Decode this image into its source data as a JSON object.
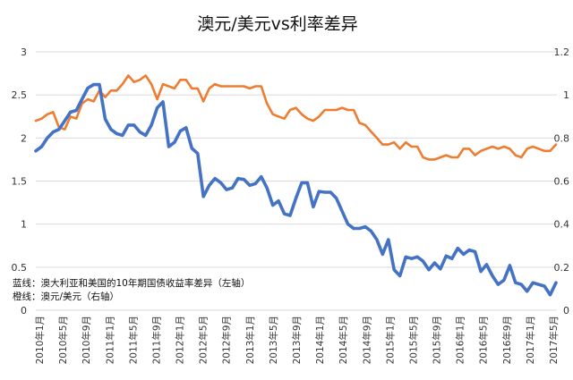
{
  "chart_data": {
    "type": "line",
    "title": "澳元/美元vs利率差异",
    "xlabel": "",
    "y_left": {
      "ylim": [
        0,
        3
      ],
      "ticks": [
        "0",
        "0.5",
        "1",
        "1.5",
        "2",
        "2.5",
        "3"
      ]
    },
    "y_right": {
      "ylim": [
        0,
        1.2
      ],
      "ticks": [
        "0",
        "0.2",
        "0.4",
        "0.6",
        "0.8",
        "1",
        "1.2"
      ]
    },
    "x_ticks": [
      "2010年1月",
      "2010年5月",
      "2010年9月",
      "2011年1月",
      "2011年5月",
      "2011年9月",
      "2012年1月",
      "2012年5月",
      "2012年9月",
      "2013年1月",
      "2013年5月",
      "2013年9月",
      "2014年1月",
      "2014年5月",
      "2014年9月",
      "2015年1月",
      "2015年5月",
      "2015年9月",
      "2016年1月",
      "2016年5月",
      "2016年9月",
      "2017年1月",
      "2017年5月"
    ],
    "legend": [
      "蓝线：澳大利亚和美国的10年期国债收益率差异（左轴）",
      "橙线：澳元/美元（右轴）"
    ],
    "series": [
      {
        "name": "澳大利亚和美国的10年期国债收益率差异",
        "axis": "left",
        "color": "#4472C4",
        "values": [
          1.85,
          1.9,
          2.0,
          2.07,
          2.1,
          2.2,
          2.3,
          2.32,
          2.45,
          2.58,
          2.62,
          2.62,
          2.22,
          2.1,
          2.05,
          2.03,
          2.15,
          2.15,
          2.07,
          2.03,
          2.15,
          2.35,
          2.42,
          1.9,
          1.95,
          2.08,
          2.12,
          1.88,
          1.82,
          1.32,
          1.45,
          1.53,
          1.48,
          1.4,
          1.42,
          1.53,
          1.52,
          1.45,
          1.47,
          1.55,
          1.42,
          1.22,
          1.27,
          1.12,
          1.1,
          1.3,
          1.48,
          1.48,
          1.2,
          1.38,
          1.37,
          1.37,
          1.3,
          1.15,
          1.0,
          0.95,
          0.95,
          0.97,
          0.92,
          0.82,
          0.65,
          0.82,
          0.47,
          0.4,
          0.62,
          0.6,
          0.62,
          0.57,
          0.47,
          0.55,
          0.48,
          0.63,
          0.6,
          0.72,
          0.65,
          0.7,
          0.68,
          0.45,
          0.53,
          0.4,
          0.3,
          0.35,
          0.52,
          0.32,
          0.3,
          0.22,
          0.32,
          0.3,
          0.28,
          0.18,
          0.32
        ]
      },
      {
        "name": "澳元/美元",
        "axis": "right",
        "color": "#ED7D31",
        "values": [
          0.88,
          0.89,
          0.91,
          0.92,
          0.85,
          0.84,
          0.9,
          0.89,
          0.96,
          0.98,
          0.97,
          1.02,
          0.99,
          1.02,
          1.02,
          1.05,
          1.09,
          1.06,
          1.07,
          1.09,
          1.05,
          0.98,
          1.05,
          1.04,
          1.03,
          1.07,
          1.07,
          1.03,
          1.03,
          0.97,
          1.03,
          1.05,
          1.04,
          1.04,
          1.04,
          1.04,
          1.04,
          1.03,
          1.04,
          1.04,
          0.96,
          0.91,
          0.9,
          0.89,
          0.93,
          0.94,
          0.91,
          0.89,
          0.88,
          0.9,
          0.93,
          0.93,
          0.93,
          0.94,
          0.93,
          0.93,
          0.87,
          0.86,
          0.83,
          0.8,
          0.77,
          0.77,
          0.78,
          0.75,
          0.78,
          0.76,
          0.76,
          0.71,
          0.7,
          0.7,
          0.71,
          0.72,
          0.71,
          0.71,
          0.75,
          0.75,
          0.72,
          0.74,
          0.75,
          0.76,
          0.75,
          0.76,
          0.75,
          0.72,
          0.71,
          0.75,
          0.76,
          0.75,
          0.74,
          0.74,
          0.77
        ]
      }
    ]
  }
}
